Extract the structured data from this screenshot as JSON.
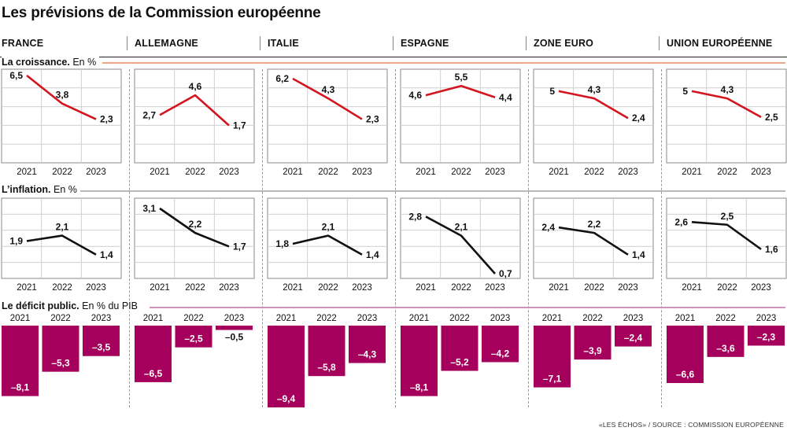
{
  "title": "Les prévisions de la Commission européenne",
  "credit": "«LES ÉCHOS» / SOURCE : COMMISSION EUROPÉENNE",
  "colors": {
    "growth": "#d4141e",
    "inflation": "#111111",
    "deficit": "#a4005c",
    "growth_rule": "#f0a585",
    "inflation_rule": "#b8b8b8",
    "deficit_rule": "#cf92b8"
  },
  "countries": [
    "FRANCE",
    "ALLEMAGNE",
    "ITALIE",
    "ESPAGNE",
    "ZONE EURO",
    "UNION EUROPÉENNE"
  ],
  "sections": {
    "growth": {
      "title": "La croissance.",
      "unit": "En %"
    },
    "inflation": {
      "title": "L’inflation.",
      "unit": "En %"
    },
    "deficit": {
      "title": "Le déficit public.",
      "unit": "En % du PIB"
    }
  },
  "chart_data": [
    {
      "type": "line",
      "title": "La croissance. En %",
      "x": [
        "2021",
        "2022",
        "2023"
      ],
      "ylim": [
        0,
        6.5
      ],
      "grid": true,
      "series": [
        {
          "name": "FRANCE",
          "values": [
            6.5,
            3.8,
            2.3
          ],
          "labels": [
            "6,5",
            "3,8",
            "2,3"
          ]
        },
        {
          "name": "ALLEMAGNE",
          "values": [
            2.7,
            4.6,
            1.7
          ],
          "labels": [
            "2,7",
            "4,6",
            "1,7"
          ]
        },
        {
          "name": "ITALIE",
          "values": [
            6.2,
            4.3,
            2.3
          ],
          "labels": [
            "6,2",
            "4,3",
            "2,3"
          ]
        },
        {
          "name": "ESPAGNE",
          "values": [
            4.6,
            5.5,
            4.4
          ],
          "labels": [
            "4,6",
            "5,5",
            "4,4"
          ]
        },
        {
          "name": "ZONE EURO",
          "values": [
            5.0,
            4.3,
            2.4
          ],
          "labels": [
            "5",
            "4,3",
            "2,4"
          ]
        },
        {
          "name": "UNION EUROPÉENNE",
          "values": [
            5.0,
            4.3,
            2.5
          ],
          "labels": [
            "5",
            "4,3",
            "2,5"
          ]
        }
      ]
    },
    {
      "type": "line",
      "title": "L’inflation. En %",
      "x": [
        "2021",
        "2022",
        "2023"
      ],
      "ylim": [
        0.7,
        3.1
      ],
      "grid": true,
      "series": [
        {
          "name": "FRANCE",
          "values": [
            1.9,
            2.1,
            1.4
          ],
          "labels": [
            "1,9",
            "2,1",
            "1,4"
          ]
        },
        {
          "name": "ALLEMAGNE",
          "values": [
            3.1,
            2.2,
            1.7
          ],
          "labels": [
            "3,1",
            "2,2",
            "1,7"
          ]
        },
        {
          "name": "ITALIE",
          "values": [
            1.8,
            2.1,
            1.4
          ],
          "labels": [
            "1,8",
            "2,1",
            "1,4"
          ]
        },
        {
          "name": "ESPAGNE",
          "values": [
            2.8,
            2.1,
            0.7
          ],
          "labels": [
            "2,8",
            "2,1",
            "0,7"
          ]
        },
        {
          "name": "ZONE EURO",
          "values": [
            2.4,
            2.2,
            1.4
          ],
          "labels": [
            "2,4",
            "2,2",
            "1,4"
          ]
        },
        {
          "name": "UNION EUROPÉENNE",
          "values": [
            2.6,
            2.5,
            1.6
          ],
          "labels": [
            "2,6",
            "2,5",
            "1,6"
          ]
        }
      ]
    },
    {
      "type": "bar",
      "title": "Le déficit public. En % du PIB",
      "categories": [
        "2021",
        "2022",
        "2023"
      ],
      "ylim": [
        -9.4,
        0
      ],
      "grid": false,
      "series": [
        {
          "name": "FRANCE",
          "values": [
            -8.1,
            -5.3,
            -3.5
          ],
          "labels": [
            "–8,1",
            "–5,3",
            "–3,5"
          ]
        },
        {
          "name": "ALLEMAGNE",
          "values": [
            -6.5,
            -2.5,
            -0.5
          ],
          "labels": [
            "–6,5",
            "–2,5",
            "–0,5"
          ]
        },
        {
          "name": "ITALIE",
          "values": [
            -9.4,
            -5.8,
            -4.3
          ],
          "labels": [
            "–9,4",
            "–5,8",
            "–4,3"
          ]
        },
        {
          "name": "ESPAGNE",
          "values": [
            -8.1,
            -5.2,
            -4.2
          ],
          "labels": [
            "–8,1",
            "–5,2",
            "–4,2"
          ]
        },
        {
          "name": "ZONE EURO",
          "values": [
            -7.1,
            -3.9,
            -2.4
          ],
          "labels": [
            "–7,1",
            "–3,9",
            "–2,4"
          ]
        },
        {
          "name": "UNION EUROPÉENNE",
          "values": [
            -6.6,
            -3.6,
            -2.3
          ],
          "labels": [
            "–6,6",
            "–3,6",
            "–2,3"
          ]
        }
      ]
    }
  ]
}
